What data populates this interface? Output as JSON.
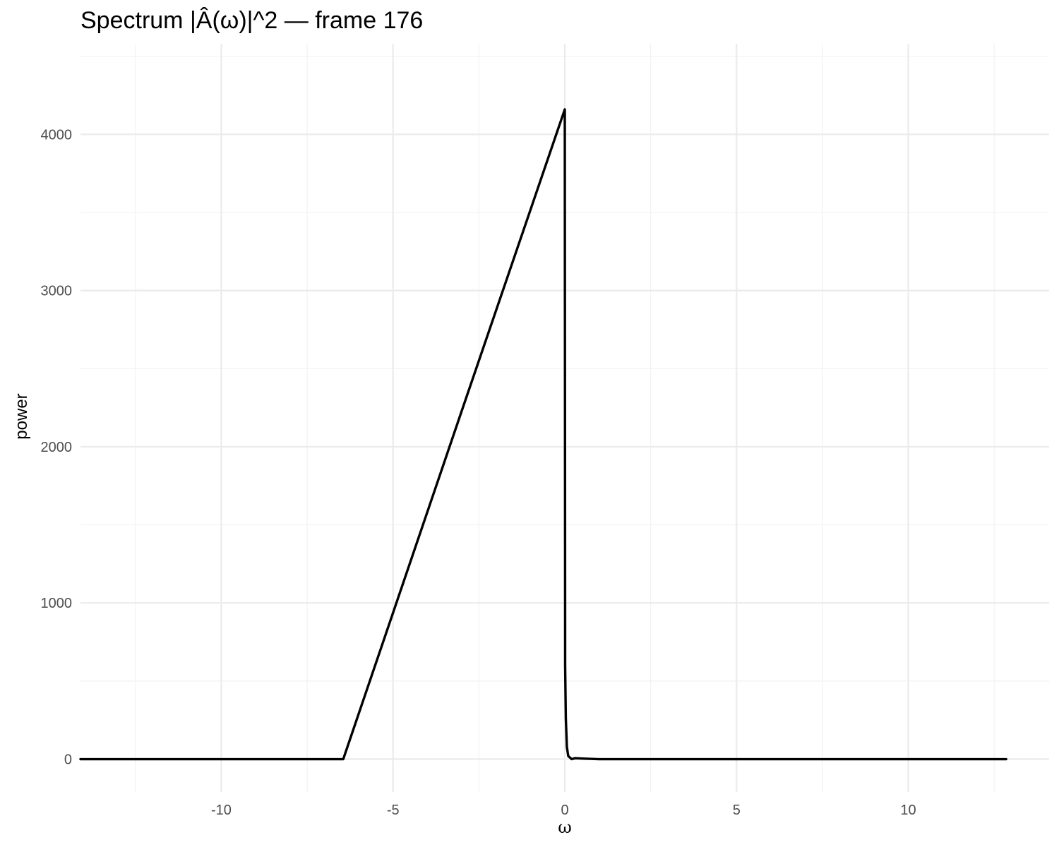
{
  "chart_data": {
    "type": "line",
    "title": "Spectrum |Â(ω)|^2 — frame 176",
    "xlabel": "ω",
    "ylabel": "power",
    "xlim": [
      -14.1,
      14.1
    ],
    "ylim": [
      -210,
      4580
    ],
    "x_ticks": [
      -10,
      -5,
      0,
      5,
      10
    ],
    "x_tick_labels": [
      "-10",
      "-5",
      "0",
      "5",
      "10"
    ],
    "x_minor_ticks": [
      -12.5,
      -7.5,
      -2.5,
      2.5,
      7.5,
      12.5
    ],
    "y_ticks": [
      0,
      1000,
      2000,
      3000,
      4000
    ],
    "y_tick_labels": [
      "0",
      "1000",
      "2000",
      "3000",
      "4000"
    ],
    "y_minor_ticks": [
      500,
      1500,
      2500,
      3500,
      4500
    ],
    "grid": true,
    "legend": "none",
    "colors": {
      "line": "#000000",
      "grid": "#ebebeb",
      "tick_text": "#4d4d4d"
    },
    "series": [
      {
        "x": [
          -14.1,
          -6.45,
          -3.0,
          0.0,
          0.01,
          0.03,
          0.06,
          0.1,
          0.2,
          0.3,
          0.5,
          1.0,
          5.0,
          10.0,
          12.85
        ],
        "y": [
          0,
          0,
          2230,
          4160,
          600,
          260,
          80,
          20,
          0,
          6,
          4,
          0,
          0,
          0,
          0
        ]
      }
    ]
  }
}
